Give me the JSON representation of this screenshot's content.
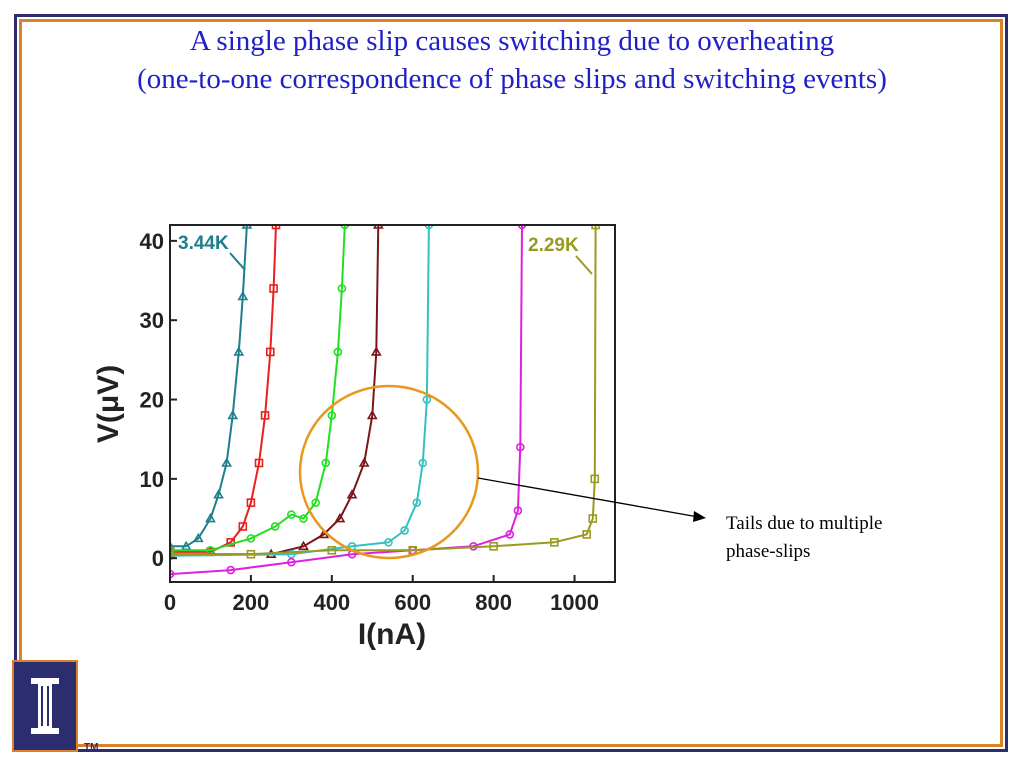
{
  "slide": {
    "title_line1": "A single phase slip causes switching due to overheating",
    "title_line2": "(one-to-one correspondence of phase slips and switching events)",
    "callout_text_line1": "Tails due to multiple",
    "callout_text_line2": "phase-slips",
    "logo_mark": "I",
    "trademark": "TM",
    "colors": {
      "title": "#2020c8",
      "frame_outer": "#2c2b6e",
      "frame_inner": "#d9822b",
      "highlight_circle": "#e8971f"
    }
  },
  "chart_data": {
    "type": "line",
    "xlabel": "I(nA)",
    "ylabel": "V(μV)",
    "xlim": [
      0,
      1100
    ],
    "ylim": [
      -3,
      42
    ],
    "xticks": [
      0,
      200,
      400,
      600,
      800,
      1000
    ],
    "yticks": [
      0,
      10,
      20,
      30,
      40
    ],
    "annotations": [
      "3.44K",
      "2.29K"
    ],
    "series": [
      {
        "color": "#1e7f8c",
        "marker": "triangle",
        "points": [
          [
            0,
            1.5
          ],
          [
            40,
            1.5
          ],
          [
            70,
            2.5
          ],
          [
            100,
            5
          ],
          [
            120,
            8
          ],
          [
            140,
            12
          ],
          [
            155,
            18
          ],
          [
            170,
            26
          ],
          [
            180,
            33
          ],
          [
            190,
            42
          ]
        ]
      },
      {
        "color": "#e8201e",
        "marker": "square",
        "points": [
          [
            0,
            0.8
          ],
          [
            100,
            0.8
          ],
          [
            150,
            2
          ],
          [
            180,
            4
          ],
          [
            200,
            7
          ],
          [
            220,
            12
          ],
          [
            235,
            18
          ],
          [
            248,
            26
          ],
          [
            256,
            34
          ],
          [
            262,
            42
          ]
        ]
      },
      {
        "color": "#20e020",
        "marker": "circle",
        "points": [
          [
            0,
            1
          ],
          [
            100,
            1
          ],
          [
            200,
            2.5
          ],
          [
            260,
            4
          ],
          [
            300,
            5.5
          ],
          [
            330,
            5
          ],
          [
            360,
            7
          ],
          [
            385,
            12
          ],
          [
            400,
            18
          ],
          [
            415,
            26
          ],
          [
            425,
            34
          ],
          [
            432,
            42
          ]
        ]
      },
      {
        "color": "#7a1518",
        "marker": "triangle",
        "points": [
          [
            0,
            0.5
          ],
          [
            250,
            0.5
          ],
          [
            330,
            1.5
          ],
          [
            380,
            3
          ],
          [
            420,
            5
          ],
          [
            450,
            8
          ],
          [
            480,
            12
          ],
          [
            500,
            18
          ],
          [
            510,
            26
          ],
          [
            515,
            42
          ]
        ]
      },
      {
        "color": "#35c0c0",
        "marker": "circle",
        "points": [
          [
            0,
            0.3
          ],
          [
            300,
            0.5
          ],
          [
            450,
            1.5
          ],
          [
            540,
            2
          ],
          [
            580,
            3.5
          ],
          [
            610,
            7
          ],
          [
            625,
            12
          ],
          [
            635,
            20
          ],
          [
            640,
            42
          ]
        ]
      },
      {
        "color": "#e020e0",
        "marker": "circle",
        "points": [
          [
            0,
            -2
          ],
          [
            150,
            -1.5
          ],
          [
            300,
            -0.5
          ],
          [
            450,
            0.5
          ],
          [
            600,
            1
          ],
          [
            750,
            1.5
          ],
          [
            840,
            3
          ],
          [
            860,
            6
          ],
          [
            866,
            14
          ],
          [
            870,
            42
          ]
        ]
      },
      {
        "color": "#9a9a20",
        "marker": "square",
        "points": [
          [
            0,
            0.5
          ],
          [
            200,
            0.5
          ],
          [
            400,
            1
          ],
          [
            600,
            1
          ],
          [
            800,
            1.5
          ],
          [
            950,
            2
          ],
          [
            1030,
            3
          ],
          [
            1045,
            5
          ],
          [
            1050,
            10
          ],
          [
            1052,
            42
          ]
        ]
      }
    ]
  }
}
